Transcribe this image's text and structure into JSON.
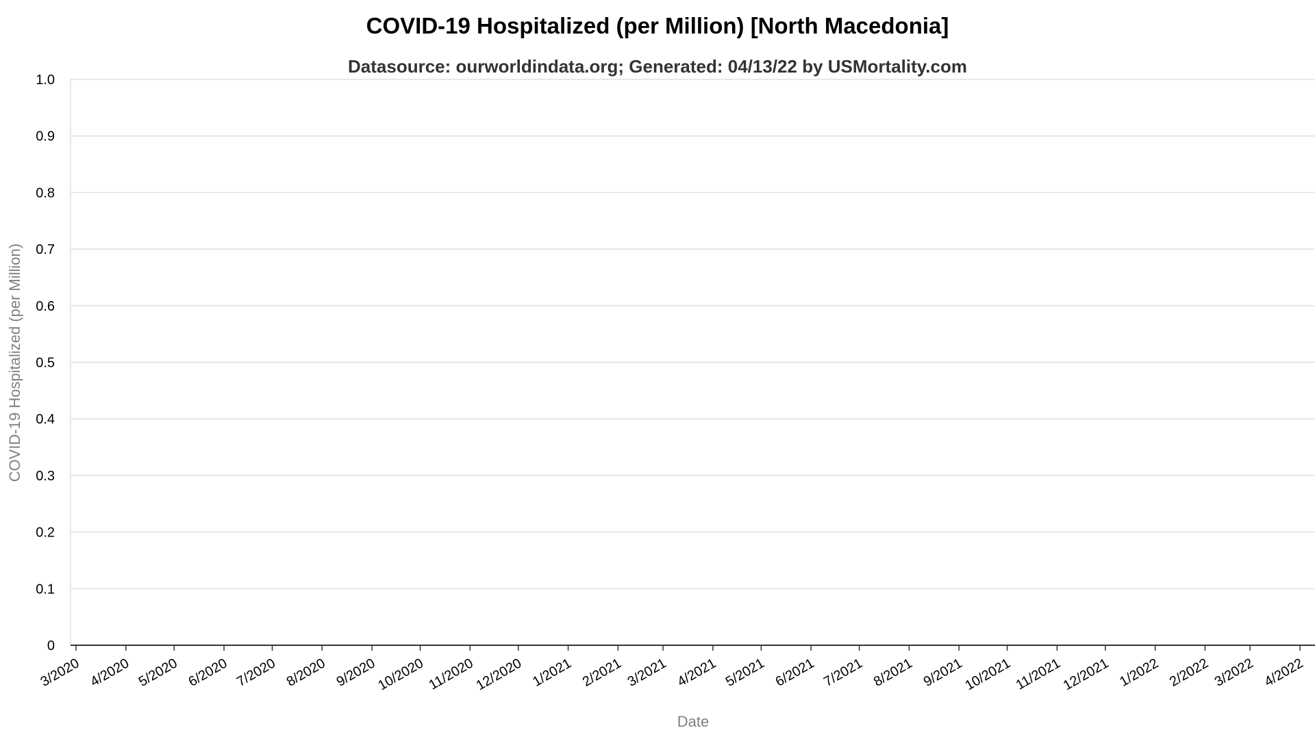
{
  "chart_data": {
    "type": "line",
    "title": "COVID-19 Hospitalized (per Million) [North Macedonia]",
    "subtitle": "Datasource: ourworldindata.org; Generated: 04/13/22 by USMortality.com",
    "xlabel": "Date",
    "ylabel": "COVID-19 Hospitalized (per Million)",
    "ylim": [
      0,
      1.0
    ],
    "y_ticks": [
      "0",
      "0.1",
      "0.2",
      "0.3",
      "0.4",
      "0.5",
      "0.6",
      "0.7",
      "0.8",
      "0.9",
      "1.0"
    ],
    "x_ticks": [
      "3/2020",
      "4/2020",
      "5/2020",
      "6/2020",
      "7/2020",
      "8/2020",
      "9/2020",
      "10/2020",
      "11/2020",
      "12/2020",
      "1/2021",
      "2/2021",
      "3/2021",
      "4/2021",
      "5/2021",
      "6/2021",
      "7/2021",
      "8/2021",
      "9/2021",
      "10/2021",
      "11/2021",
      "12/2021",
      "1/2022",
      "2/2022",
      "3/2022",
      "4/2022"
    ],
    "grid": true,
    "series": []
  }
}
